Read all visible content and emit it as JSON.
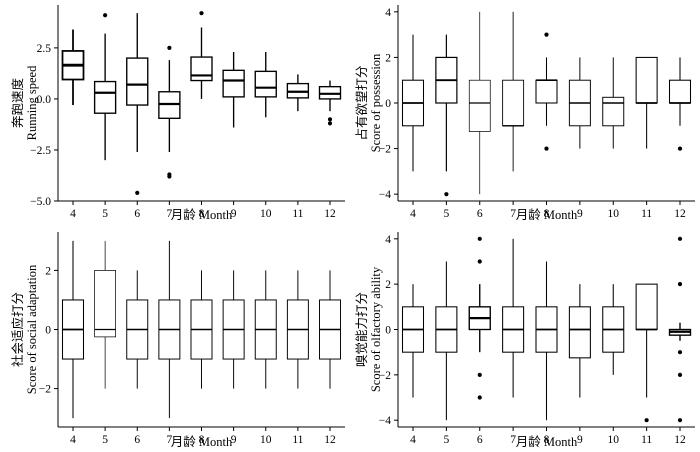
{
  "chart_data": [
    {
      "type": "box",
      "xlabel": "月龄 Month",
      "ylabel_cn": "奔跑速度",
      "ylabel_en": "Running speed",
      "ylim": [
        -5.0,
        4.6
      ],
      "yticks": [
        -5.0,
        -2.5,
        0.0,
        2.5
      ],
      "ytick_labels": [
        "−5.0",
        "−2.5",
        "0.0",
        "2.5"
      ],
      "categories": [
        "4",
        "5",
        "6",
        "7",
        "8",
        "9",
        "10",
        "11",
        "12"
      ],
      "boxes": [
        {
          "q1": 0.95,
          "median": 1.65,
          "q3": 2.35,
          "whisker_low": -0.3,
          "whisker_high": 3.4,
          "outliers": []
        },
        {
          "q1": -0.7,
          "median": 0.3,
          "q3": 0.85,
          "whisker_low": -3.0,
          "whisker_high": 3.2,
          "outliers": [
            4.1
          ]
        },
        {
          "q1": -0.3,
          "median": 0.7,
          "q3": 2.0,
          "whisker_low": -2.6,
          "whisker_high": 4.2,
          "outliers": [
            -4.6
          ]
        },
        {
          "q1": -0.95,
          "median": -0.25,
          "q3": 0.35,
          "whisker_low": -2.6,
          "whisker_high": 1.9,
          "outliers": [
            2.5,
            -3.7,
            -3.8
          ]
        },
        {
          "q1": 0.9,
          "median": 1.15,
          "q3": 2.05,
          "whisker_low": 0.0,
          "whisker_high": 3.5,
          "outliers": [
            4.2
          ]
        },
        {
          "q1": 0.1,
          "median": 0.9,
          "q3": 1.4,
          "whisker_low": -1.4,
          "whisker_high": 2.3,
          "outliers": []
        },
        {
          "q1": 0.1,
          "median": 0.55,
          "q3": 1.35,
          "whisker_low": -0.9,
          "whisker_high": 2.3,
          "outliers": []
        },
        {
          "q1": 0.05,
          "median": 0.35,
          "q3": 0.75,
          "whisker_low": -0.6,
          "whisker_high": 1.2,
          "outliers": []
        },
        {
          "q1": 0.0,
          "median": 0.25,
          "q3": 0.6,
          "whisker_low": -0.6,
          "whisker_high": 0.9,
          "outliers": [
            -1.0,
            -1.2
          ]
        }
      ]
    },
    {
      "type": "box",
      "xlabel": "月龄 Month",
      "ylabel_cn": "占有欲望打分",
      "ylabel_en": "Score of possession",
      "ylim": [
        -4.3,
        4.3
      ],
      "yticks": [
        -4,
        -2,
        0,
        2,
        4
      ],
      "ytick_labels": [
        "−4",
        "−2",
        "0",
        "2",
        "4"
      ],
      "categories": [
        "4",
        "5",
        "6",
        "7",
        "8",
        "9",
        "10",
        "11",
        "12"
      ],
      "boxes": [
        {
          "q1": -1,
          "median": 0,
          "q3": 1,
          "whisker_low": -3,
          "whisker_high": 3,
          "outliers": []
        },
        {
          "q1": 0,
          "median": 1,
          "q3": 2,
          "whisker_low": -3,
          "whisker_high": 3,
          "outliers": [
            -4
          ]
        },
        {
          "q1": -1.25,
          "median": 0,
          "q3": 1,
          "whisker_low": -4,
          "whisker_high": 4,
          "outliers": []
        },
        {
          "q1": -1,
          "median": -1,
          "q3": 1,
          "whisker_low": -3,
          "whisker_high": 4,
          "outliers": []
        },
        {
          "q1": 0,
          "median": 1,
          "q3": 1,
          "whisker_low": -1,
          "whisker_high": 2,
          "outliers": [
            3,
            -2
          ]
        },
        {
          "q1": -1,
          "median": 0,
          "q3": 1,
          "whisker_low": -2,
          "whisker_high": 2,
          "outliers": []
        },
        {
          "q1": -1,
          "median": 0,
          "q3": 0.25,
          "whisker_low": -2,
          "whisker_high": 2,
          "outliers": []
        },
        {
          "q1": 0,
          "median": 0,
          "q3": 2,
          "whisker_low": -2,
          "whisker_high": 2,
          "outliers": []
        },
        {
          "q1": 0,
          "median": 0,
          "q3": 1,
          "whisker_low": -1,
          "whisker_high": 2,
          "outliers": [
            -2
          ]
        }
      ]
    },
    {
      "type": "box",
      "xlabel": "月龄 Month",
      "ylabel_cn": "社会适应打分",
      "ylabel_en": "Score of social adaptation",
      "ylim": [
        -3.3,
        3.3
      ],
      "yticks": [
        -2,
        0,
        2
      ],
      "ytick_labels": [
        "−2",
        "0",
        "2"
      ],
      "categories": [
        "4",
        "5",
        "6",
        "7",
        "8",
        "9",
        "10",
        "11",
        "12"
      ],
      "boxes": [
        {
          "q1": -1,
          "median": 0,
          "q3": 1,
          "whisker_low": -3,
          "whisker_high": 3,
          "outliers": []
        },
        {
          "q1": -0.25,
          "median": 0,
          "q3": 2,
          "whisker_low": -2,
          "whisker_high": 3,
          "outliers": []
        },
        {
          "q1": -1,
          "median": 0,
          "q3": 1,
          "whisker_low": -2,
          "whisker_high": 2,
          "outliers": []
        },
        {
          "q1": -1,
          "median": 0,
          "q3": 1,
          "whisker_low": -3,
          "whisker_high": 3,
          "outliers": []
        },
        {
          "q1": -1,
          "median": 0,
          "q3": 1,
          "whisker_low": -2,
          "whisker_high": 2,
          "outliers": []
        },
        {
          "q1": -1,
          "median": 0,
          "q3": 1,
          "whisker_low": -2,
          "whisker_high": 2,
          "outliers": []
        },
        {
          "q1": -1,
          "median": 0,
          "q3": 1,
          "whisker_low": -2,
          "whisker_high": 2,
          "outliers": []
        },
        {
          "q1": -1,
          "median": 0,
          "q3": 1,
          "whisker_low": -2,
          "whisker_high": 2,
          "outliers": []
        },
        {
          "q1": -1,
          "median": 0,
          "q3": 1,
          "whisker_low": -2,
          "whisker_high": 2,
          "outliers": []
        }
      ]
    },
    {
      "type": "box",
      "xlabel": "月龄 Month",
      "ylabel_cn": "嗅觉能力打分",
      "ylabel_en": "Score of olfactory ability",
      "ylim": [
        -4.3,
        4.3
      ],
      "yticks": [
        -4,
        -2,
        0,
        2,
        4
      ],
      "ytick_labels": [
        "−4",
        "−2",
        "0",
        "2",
        "4"
      ],
      "categories": [
        "4",
        "5",
        "6",
        "7",
        "8",
        "9",
        "10",
        "11",
        "12"
      ],
      "boxes": [
        {
          "q1": -1,
          "median": 0,
          "q3": 1,
          "whisker_low": -3,
          "whisker_high": 2,
          "outliers": []
        },
        {
          "q1": -1,
          "median": 0,
          "q3": 1,
          "whisker_low": -4,
          "whisker_high": 3,
          "outliers": []
        },
        {
          "q1": 0,
          "median": 0.5,
          "q3": 1,
          "whisker_low": -1,
          "whisker_high": 2,
          "outliers": [
            4,
            3,
            -2,
            -3
          ]
        },
        {
          "q1": -1,
          "median": 0,
          "q3": 1,
          "whisker_low": -3,
          "whisker_high": 4,
          "outliers": []
        },
        {
          "q1": -1,
          "median": 0,
          "q3": 1,
          "whisker_low": -4,
          "whisker_high": 3,
          "outliers": []
        },
        {
          "q1": -1.25,
          "median": 0,
          "q3": 1,
          "whisker_low": -3,
          "whisker_high": 2,
          "outliers": []
        },
        {
          "q1": -1,
          "median": 0,
          "q3": 1,
          "whisker_low": -2,
          "whisker_high": 2,
          "outliers": []
        },
        {
          "q1": 0,
          "median": 0,
          "q3": 2,
          "whisker_low": -3,
          "whisker_high": 2,
          "outliers": [
            -4
          ]
        },
        {
          "q1": -0.25,
          "median": -0.1,
          "q3": 0,
          "whisker_low": -0.5,
          "whisker_high": 0.3,
          "outliers": [
            4,
            2,
            -1,
            -2,
            -4
          ]
        }
      ]
    }
  ]
}
